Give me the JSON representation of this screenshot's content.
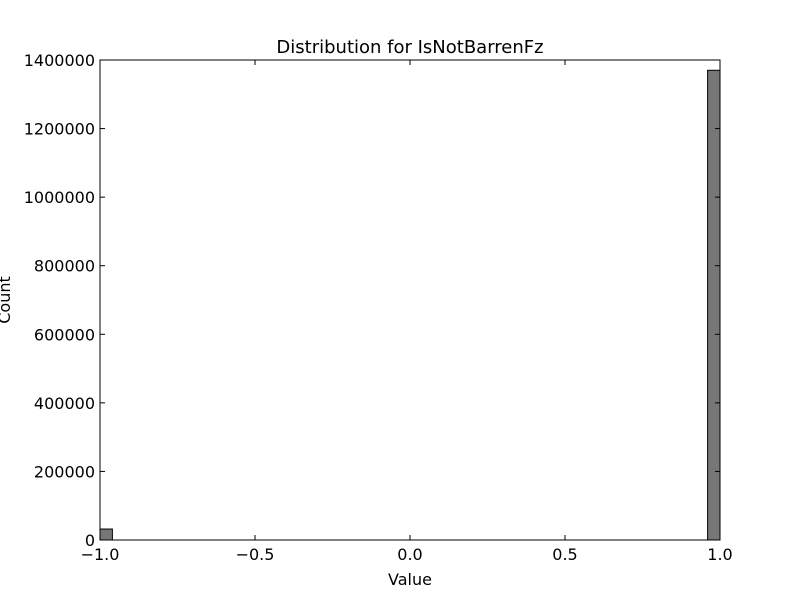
{
  "chart_data": {
    "type": "bar",
    "title": "Distribution for IsNotBarrenFz",
    "xlabel": "Value",
    "ylabel": "Count",
    "xlim": [
      -1.0,
      1.0
    ],
    "ylim": [
      0,
      1400000
    ],
    "x_ticks": [
      "−1.0",
      "−0.5",
      "0.0",
      "0.5",
      "1.0"
    ],
    "y_ticks": [
      "0",
      "200000",
      "400000",
      "600000",
      "800000",
      "1000000",
      "1200000",
      "1400000"
    ],
    "grid": false,
    "bins": [
      {
        "start": -1.0,
        "end": -0.96,
        "count": 32000
      },
      {
        "start": 0.96,
        "end": 1.0,
        "count": 1370000
      }
    ],
    "bar_color": "#777777",
    "edge_color": "#000000"
  }
}
